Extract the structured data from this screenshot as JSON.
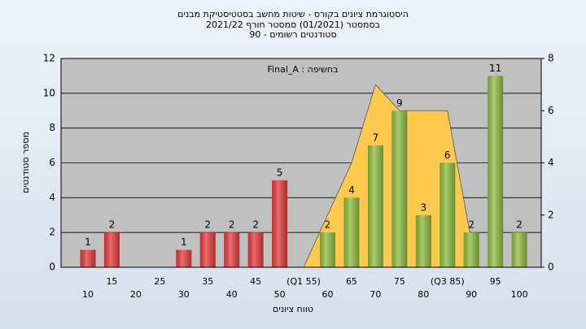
{
  "chart_data": {
    "type": "bar",
    "title": "היסטוגרמת ציונים בקורס - שיטות מחשב בסטטיסטיקת מבנים",
    "subtitle": "בסמסטר  (01/2021)  סמסטר חורף 2021/22",
    "subtitle2": "סטודנטים רשומים - 90",
    "annotation": "Final_A : בחשיפה",
    "x_label": "טווח ציונים",
    "y_label": "מספר סטודנטים",
    "categories": [
      "10",
      "15",
      "20",
      "25",
      "30",
      "35",
      "40",
      "45",
      "50",
      "(Q1 55)",
      "60",
      "65",
      "70",
      "75",
      "80",
      "(Q3 85)",
      "90",
      "95",
      "100"
    ],
    "values": [
      1,
      2,
      0,
      0,
      1,
      2,
      2,
      2,
      5,
      0,
      2,
      4,
      7,
      9,
      3,
      6,
      2,
      11,
      2
    ],
    "colors": [
      "#e33a3a",
      "#e33a3a",
      "#e33a3a",
      "#e33a3a",
      "#e33a3a",
      "#e33a3a",
      "#e33a3a",
      "#e33a3a",
      "#e33a3a",
      "#e33a3a",
      "#8dbb3e",
      "#8dbb3e",
      "#8dbb3e",
      "#8dbb3e",
      "#8dbb3e",
      "#8dbb3e",
      "#8dbb3e",
      "#8dbb3e",
      "#8dbb3e"
    ],
    "area": {
      "axis": "y2",
      "color": "#ffc94d",
      "values": [
        null,
        null,
        null,
        null,
        null,
        null,
        null,
        null,
        null,
        0,
        2,
        4,
        7,
        6,
        6,
        6,
        1,
        null,
        null
      ]
    },
    "ylim": [
      0,
      12
    ],
    "yticks": [
      0,
      2,
      4,
      6,
      8,
      10,
      12
    ],
    "y2lim": [
      0,
      8
    ],
    "y2ticks": [
      0,
      2,
      4,
      6,
      8
    ],
    "grid": true
  }
}
